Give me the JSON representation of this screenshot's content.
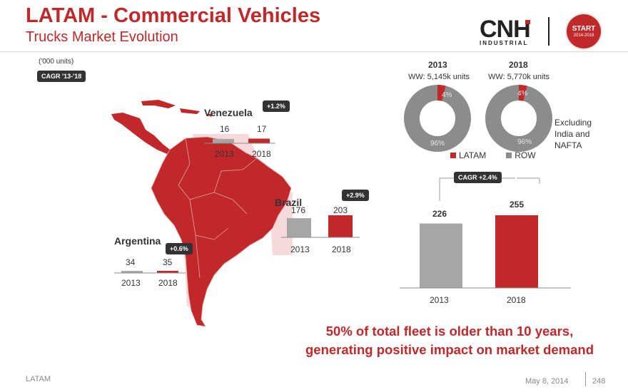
{
  "header": {
    "title": "LATAM - Commercial Vehicles",
    "subtitle": "Trucks Market Evolution",
    "logo_text": "CNH",
    "logo_sub": "INDUSTRIAL",
    "badge_big": "START",
    "badge_small": "2014-2018"
  },
  "units_note": "('000 units)",
  "cagr_label": "CAGR '13-'18",
  "colors": {
    "red": "#c0282a",
    "grey": "#a6a6a6",
    "dark": "#333333"
  },
  "chart_data": [
    {
      "type": "bar",
      "title": "Venezuela",
      "categories": [
        "2013",
        "2018"
      ],
      "values": [
        16,
        17
      ],
      "growth": "+1.2%"
    },
    {
      "type": "bar",
      "title": "Brazil",
      "categories": [
        "2013",
        "2018"
      ],
      "values": [
        176,
        203
      ],
      "growth": "+2.9%"
    },
    {
      "type": "bar",
      "title": "Argentina",
      "categories": [
        "2013",
        "2018"
      ],
      "values": [
        34,
        35
      ],
      "growth": "+0.6%"
    },
    {
      "type": "bar",
      "title": "LATAM",
      "categories": [
        "2013",
        "2018"
      ],
      "values": [
        226,
        255
      ],
      "growth": "CAGR +2.4%"
    },
    {
      "type": "pie",
      "title": "2013",
      "subtitle": "WW:  5,145k  units",
      "labels": [
        "LATAM",
        "ROW"
      ],
      "values": [
        4,
        96
      ],
      "value_labels": [
        "4%",
        "96%"
      ]
    },
    {
      "type": "pie",
      "title": "2018",
      "subtitle": "WW:  5,770k  units",
      "labels": [
        "LATAM",
        "ROW"
      ],
      "values": [
        4,
        96
      ],
      "value_labels": [
        "4%",
        "96%"
      ]
    }
  ],
  "donut_note": "Excluding India and NAFTA",
  "legend": [
    "LATAM",
    "ROW"
  ],
  "tagline_line1": "50% of total fleet is older than 10 years,",
  "tagline_line2": "generating positive impact on market demand",
  "footer": {
    "left": "LATAM",
    "date": "May 8, 2014",
    "page": "248"
  }
}
